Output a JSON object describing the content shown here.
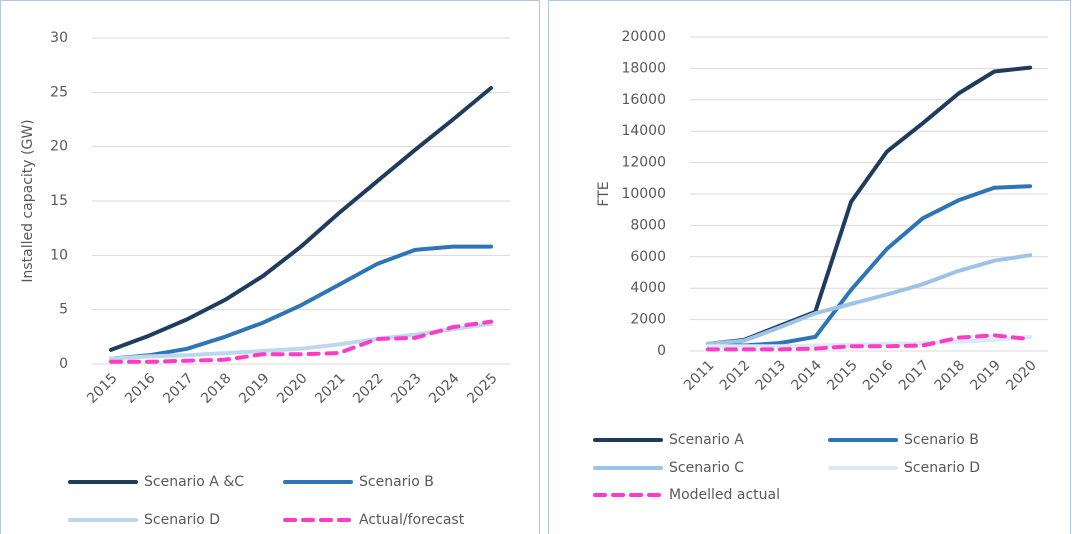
{
  "chart_data": [
    {
      "type": "line",
      "ylabel": "Installed capacity (GW)",
      "categories": [
        "2015",
        "2016",
        "2017",
        "2018",
        "2019",
        "2020",
        "2021",
        "2022",
        "2023",
        "2024",
        "2025"
      ],
      "ylim": [
        0,
        30
      ],
      "yticks": [
        0,
        5,
        10,
        15,
        20,
        25,
        30
      ],
      "grid": true,
      "legend": "bottom",
      "series": [
        {
          "name": "Scenario A &C",
          "color": "#1f3b5e",
          "values": [
            1.3,
            2.6,
            4.1,
            5.9,
            8.1,
            10.8,
            13.9,
            16.8,
            19.7,
            22.5,
            25.4
          ]
        },
        {
          "name": "Scenario B",
          "color": "#2e75b6",
          "values": [
            0.5,
            0.8,
            1.4,
            2.5,
            3.8,
            5.4,
            7.3,
            9.2,
            10.5,
            10.8,
            10.8
          ]
        },
        {
          "name": "Scenario D",
          "color": "#bdd7ee",
          "values": [
            0.5,
            0.7,
            0.8,
            1.0,
            1.2,
            1.4,
            1.8,
            2.3,
            2.7,
            3.2,
            3.7
          ]
        },
        {
          "name": "Actual/forecast",
          "color": "#ff3cc8",
          "dashed": true,
          "values": [
            0.2,
            0.2,
            0.3,
            0.4,
            0.9,
            0.9,
            1.0,
            2.3,
            2.4,
            3.4,
            3.9
          ]
        }
      ]
    },
    {
      "type": "line",
      "ylabel": "FTE",
      "categories": [
        "2011",
        "2012",
        "2013",
        "2014",
        "2015",
        "2016",
        "2017",
        "2018",
        "2019",
        "2020"
      ],
      "ylim": [
        0,
        20000
      ],
      "yticks": [
        0,
        2000,
        4000,
        6000,
        8000,
        10000,
        12000,
        14000,
        16000,
        18000,
        20000
      ],
      "grid": true,
      "legend": "bottom",
      "series": [
        {
          "name": "Scenario A",
          "color": "#1f3b5e",
          "values": [
            450,
            700,
            1600,
            2500,
            9500,
            12700,
            14500,
            16400,
            17800,
            18050
          ]
        },
        {
          "name": "Scenario B",
          "color": "#2e75b6",
          "values": [
            450,
            350,
            500,
            900,
            3900,
            6500,
            8450,
            9600,
            10400,
            10500
          ]
        },
        {
          "name": "Scenario C",
          "color": "#9dc3e6",
          "values": [
            450,
            650,
            1500,
            2400,
            3000,
            3600,
            4250,
            5100,
            5750,
            6100
          ]
        },
        {
          "name": "Scenario D",
          "color": "#dbe8f5",
          "values": [
            300,
            300,
            300,
            350,
            400,
            450,
            500,
            600,
            700,
            900
          ]
        },
        {
          "name": "Modelled actual",
          "color": "#ff3cc8",
          "dashed": true,
          "values": [
            100,
            100,
            100,
            150,
            300,
            300,
            350,
            850,
            1000,
            750
          ]
        }
      ]
    }
  ]
}
